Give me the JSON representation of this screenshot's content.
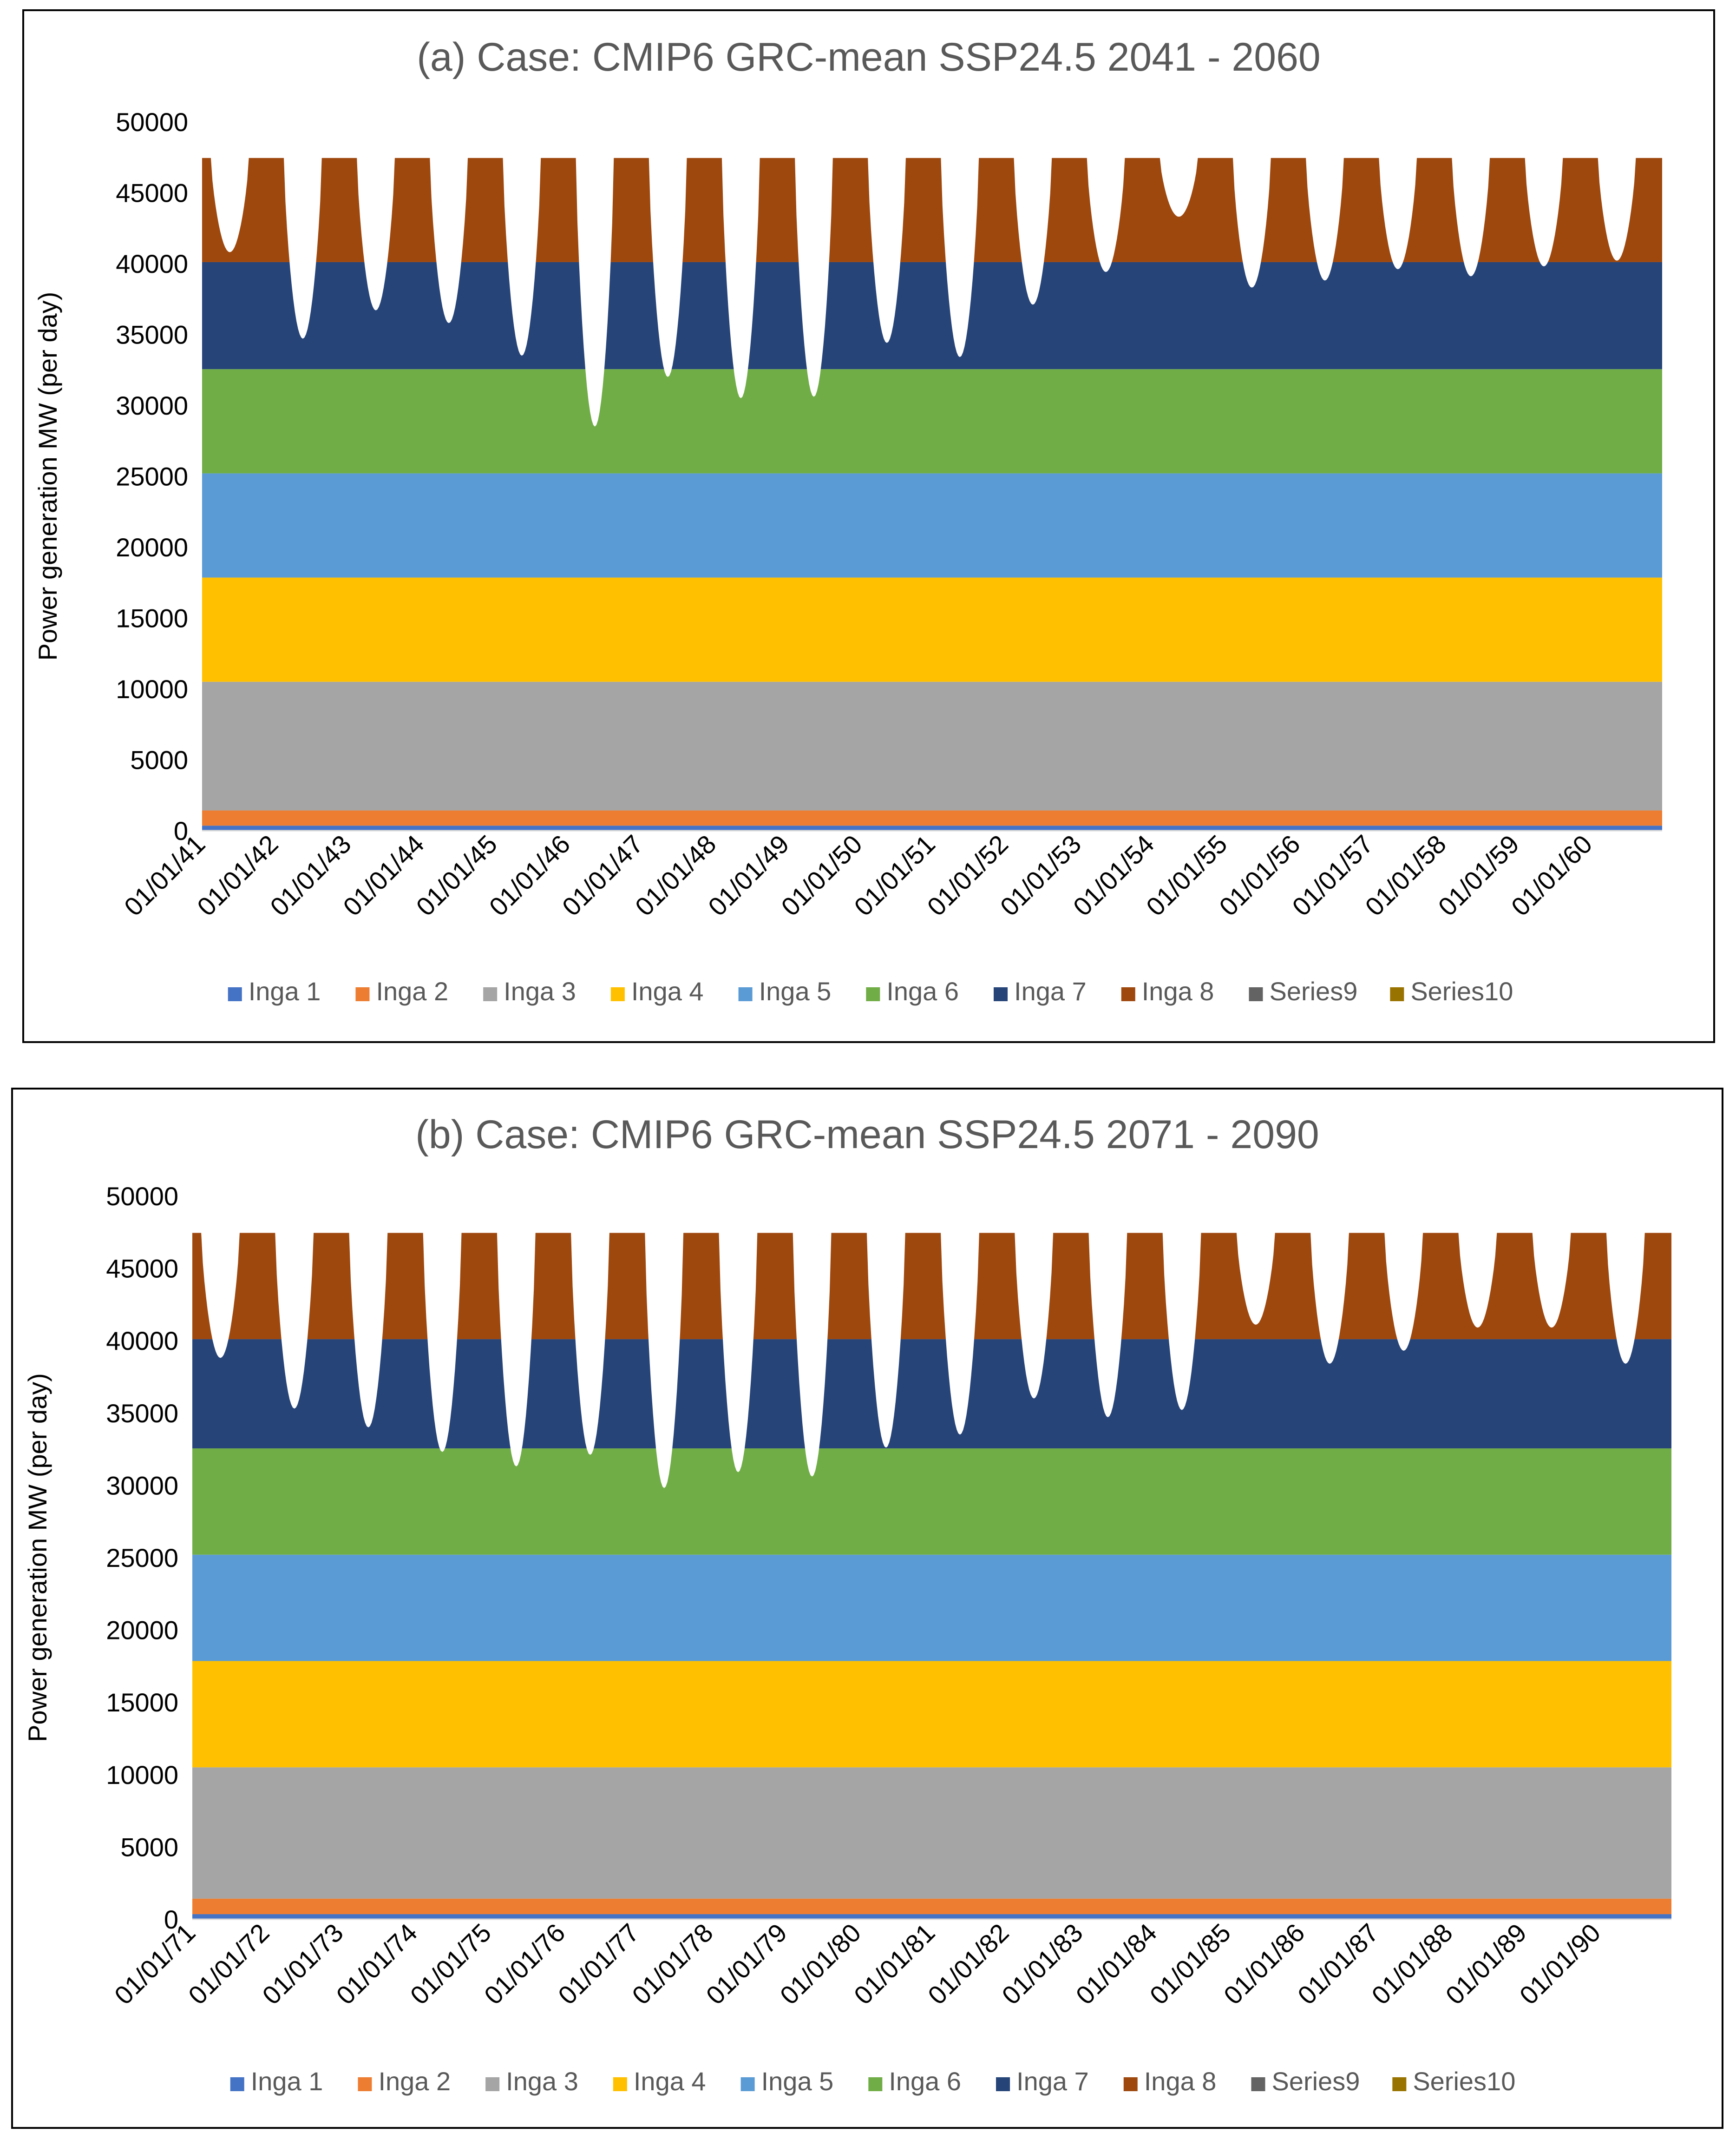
{
  "chart_data": [
    {
      "type": "area",
      "stacked": true,
      "title": "(a)  Case: CMIP6 GRC-mean  SSP24.5  2041 - 2060",
      "ylabel": "Power generation MW (per day)",
      "xlabel": "",
      "ylim": [
        0,
        50000
      ],
      "yticks": [
        "0",
        "5000",
        "10000",
        "15000",
        "20000",
        "25000",
        "30000",
        "35000",
        "40000",
        "45000",
        "50000"
      ],
      "x_range": [
        "01/01/41",
        "31/12/60"
      ],
      "xticks": [
        "01/01/41",
        "01/01/42",
        "01/01/43",
        "01/01/44",
        "01/01/45",
        "01/01/46",
        "01/01/47",
        "01/01/48",
        "01/01/49",
        "01/01/50",
        "01/01/51",
        "01/01/52",
        "01/01/53",
        "01/01/54",
        "01/01/55",
        "01/01/56",
        "01/01/57",
        "01/01/58",
        "01/01/59",
        "01/01/60"
      ],
      "legend_position": "bottom",
      "grid": false,
      "series": [
        {
          "name": "Inga 1",
          "color": "#4472C4",
          "capacity": 351
        },
        {
          "name": "Inga 2",
          "color": "#ED7D31",
          "capacity": 1424
        },
        {
          "name": "Inga 3",
          "color": "#A5A5A5",
          "capacity": 10500
        },
        {
          "name": "Inga 4",
          "color": "#FFC000",
          "capacity": 17850
        },
        {
          "name": "Inga 5",
          "color": "#5B9BD5",
          "capacity": 25200
        },
        {
          "name": "Inga 6",
          "color": "#70AD47",
          "capacity": 32550
        },
        {
          "name": "Inga 7",
          "color": "#264478",
          "capacity": 40100
        },
        {
          "name": "Inga 8",
          "color": "#9E480E",
          "capacity": 47450
        },
        {
          "name": "Series9",
          "color": "#636363",
          "capacity": 47450
        },
        {
          "name": "Series10",
          "color": "#997300",
          "capacity": 47450
        }
      ],
      "annual_minimum_total": [
        {
          "year": "01/01/41",
          "min": 40800
        },
        {
          "year": "01/01/42",
          "min": 34700
        },
        {
          "year": "01/01/43",
          "min": 36700
        },
        {
          "year": "01/01/44",
          "min": 35800
        },
        {
          "year": "01/01/45",
          "min": 33500
        },
        {
          "year": "01/01/46",
          "min": 28500
        },
        {
          "year": "01/01/47",
          "min": 32000
        },
        {
          "year": "01/01/48",
          "min": 30500
        },
        {
          "year": "01/01/49",
          "min": 30600
        },
        {
          "year": "01/01/50",
          "min": 34400
        },
        {
          "year": "01/01/51",
          "min": 33400
        },
        {
          "year": "01/01/52",
          "min": 37100
        },
        {
          "year": "01/01/53",
          "min": 39400
        },
        {
          "year": "01/01/54",
          "min": 43300
        },
        {
          "year": "01/01/55",
          "min": 38300
        },
        {
          "year": "01/01/56",
          "min": 38800
        },
        {
          "year": "01/01/57",
          "min": 39600
        },
        {
          "year": "01/01/58",
          "min": 39100
        },
        {
          "year": "01/01/59",
          "min": 39800
        },
        {
          "year": "01/01/60",
          "min": 40200
        }
      ]
    },
    {
      "type": "area",
      "stacked": true,
      "title": "(b)  Case: CMIP6 GRC-mean  SSP24.5  2071 - 2090",
      "ylabel": "Power generation MW (per day)",
      "xlabel": "",
      "ylim": [
        0,
        50000
      ],
      "yticks": [
        "0",
        "5000",
        "10000",
        "15000",
        "20000",
        "25000",
        "30000",
        "35000",
        "40000",
        "45000",
        "50000"
      ],
      "x_range": [
        "01/01/71",
        "31/12/90"
      ],
      "xticks": [
        "01/01/71",
        "01/01/72",
        "01/01/73",
        "01/01/74",
        "01/01/75",
        "01/01/76",
        "01/01/77",
        "01/01/78",
        "01/01/79",
        "01/01/80",
        "01/01/81",
        "01/01/82",
        "01/01/83",
        "01/01/84",
        "01/01/85",
        "01/01/86",
        "01/01/87",
        "01/01/88",
        "01/01/89",
        "01/01/90"
      ],
      "legend_position": "bottom",
      "grid": false,
      "series": [
        {
          "name": "Inga 1",
          "color": "#4472C4",
          "capacity": 351
        },
        {
          "name": "Inga 2",
          "color": "#ED7D31",
          "capacity": 1424
        },
        {
          "name": "Inga 3",
          "color": "#A5A5A5",
          "capacity": 10500
        },
        {
          "name": "Inga 4",
          "color": "#FFC000",
          "capacity": 17850
        },
        {
          "name": "Inga 5",
          "color": "#5B9BD5",
          "capacity": 25200
        },
        {
          "name": "Inga 6",
          "color": "#70AD47",
          "capacity": 32550
        },
        {
          "name": "Inga 7",
          "color": "#264478",
          "capacity": 40100
        },
        {
          "name": "Inga 8",
          "color": "#9E480E",
          "capacity": 47450
        },
        {
          "name": "Series9",
          "color": "#636363",
          "capacity": 47450
        },
        {
          "name": "Series10",
          "color": "#997300",
          "capacity": 47450
        }
      ],
      "annual_minimum_total": [
        {
          "year": "01/01/71",
          "min": 38800
        },
        {
          "year": "01/01/72",
          "min": 35300
        },
        {
          "year": "01/01/73",
          "min": 34000
        },
        {
          "year": "01/01/74",
          "min": 32300
        },
        {
          "year": "01/01/75",
          "min": 31300
        },
        {
          "year": "01/01/76",
          "min": 32100
        },
        {
          "year": "01/01/77",
          "min": 29800
        },
        {
          "year": "01/01/78",
          "min": 30900
        },
        {
          "year": "01/01/79",
          "min": 30600
        },
        {
          "year": "01/01/80",
          "min": 32600
        },
        {
          "year": "01/01/81",
          "min": 33500
        },
        {
          "year": "01/01/82",
          "min": 36000
        },
        {
          "year": "01/01/83",
          "min": 34700
        },
        {
          "year": "01/01/84",
          "min": 35200
        },
        {
          "year": "01/01/85",
          "min": 41100
        },
        {
          "year": "01/01/86",
          "min": 38400
        },
        {
          "year": "01/01/87",
          "min": 39300
        },
        {
          "year": "01/01/88",
          "min": 40900
        },
        {
          "year": "01/01/89",
          "min": 40900
        },
        {
          "year": "01/01/90",
          "min": 38400
        }
      ]
    }
  ]
}
